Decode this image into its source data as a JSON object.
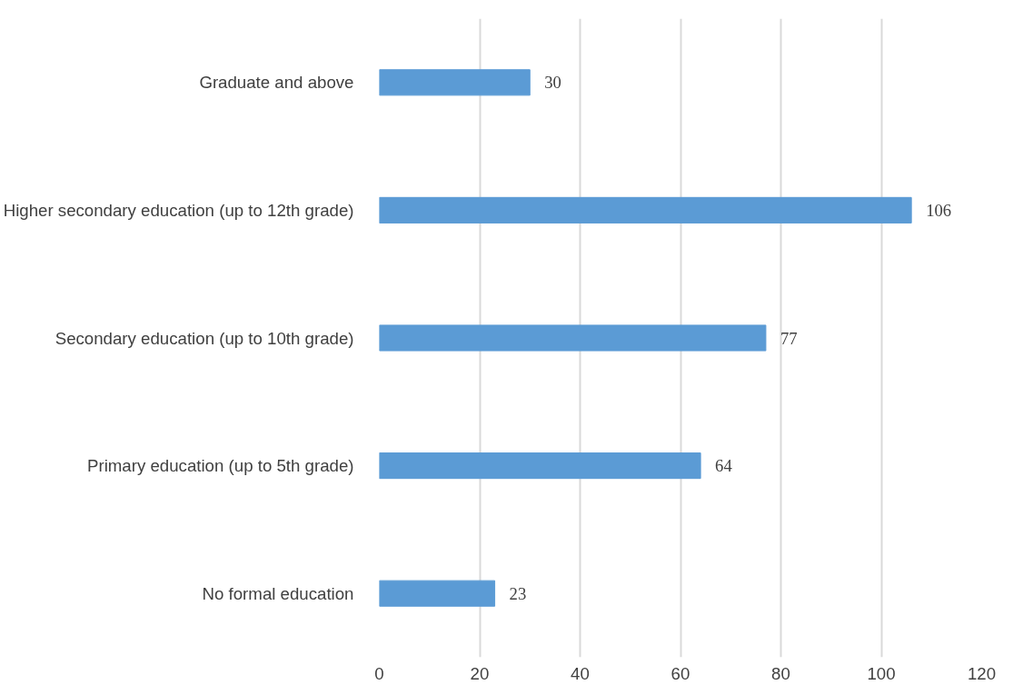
{
  "chart_data": {
    "type": "bar",
    "orientation": "horizontal",
    "categories": [
      "Graduate and above",
      "Higher secondary education (up to 12th grade)",
      "Secondary education (up to 10th grade)",
      "Primary education (up to 5th grade)",
      "No formal education"
    ],
    "values": [
      30,
      106,
      77,
      64,
      23
    ],
    "color": "#5b9bd5",
    "xlim": [
      0,
      120
    ],
    "xticks": [
      0,
      20,
      40,
      60,
      80,
      100,
      120
    ],
    "grid": "x",
    "data_labels": true
  }
}
